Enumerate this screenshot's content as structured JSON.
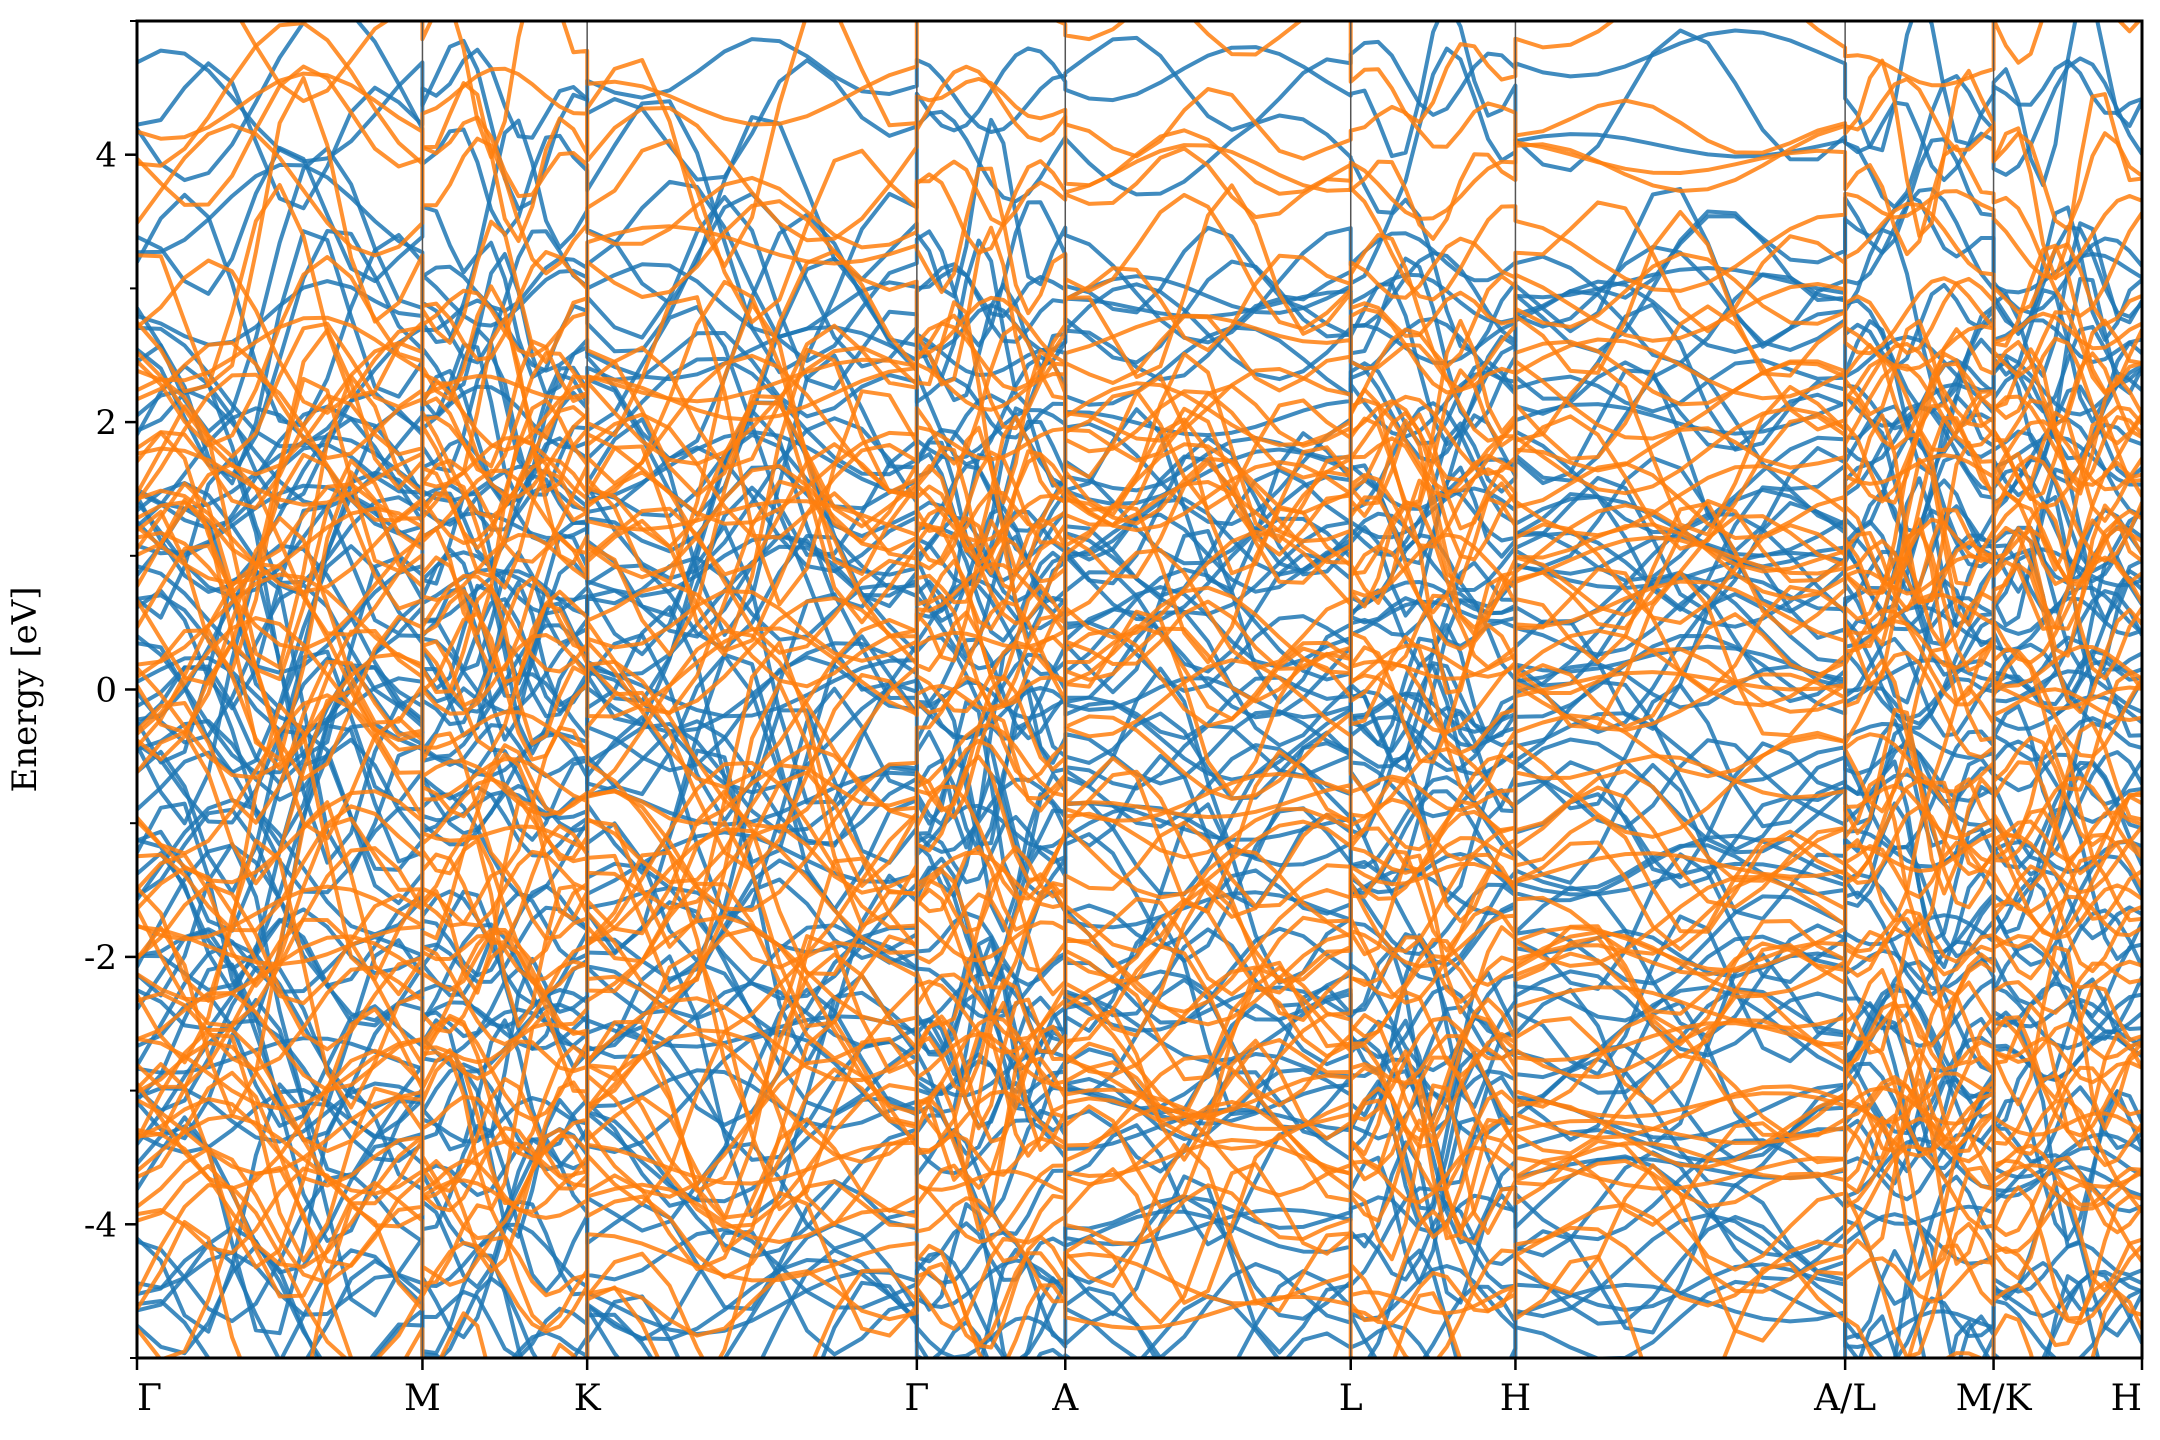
{
  "chart_data": {
    "type": "line",
    "title": "",
    "xlabel": "",
    "ylabel": "Energy [eV]",
    "ylim": [
      -5,
      5
    ],
    "yticks": [
      -4,
      -2,
      0,
      2,
      4
    ],
    "yminor_ticks": [
      -5,
      -3,
      -1,
      1,
      3,
      5
    ],
    "grid": false,
    "legend": "none",
    "colors": {
      "series_a": "#1f77b4",
      "series_b": "#ff7f0e",
      "kpoint_line": "#555555",
      "axes": "#000000"
    },
    "segments": [
      {
        "from": "Γ",
        "to": "M",
        "length": 1.0
      },
      {
        "from": "M",
        "to": "K",
        "length": 0.577
      },
      {
        "from": "K",
        "to": "Γ",
        "length": 1.155
      },
      {
        "from": "Γ",
        "to": "A",
        "length": 0.52
      },
      {
        "from": "A",
        "to": "L",
        "length": 1.0
      },
      {
        "from": "L",
        "to": "H",
        "length": 0.577
      },
      {
        "from": "H",
        "to": "A",
        "length": 1.155
      },
      {
        "from": "L",
        "to": "M",
        "length": 0.52
      },
      {
        "from": "K",
        "to": "H",
        "length": 0.52
      }
    ],
    "xtick_labels": [
      "Γ",
      "M",
      "K",
      "Γ",
      "A",
      "L",
      "H",
      "A/L",
      "M/K",
      "H"
    ],
    "bands_per_series": 70,
    "series": [
      {
        "color": "#1f77b4",
        "band_energies_at_kpoints": {
          "Γ": [
            -4.85,
            -4.6,
            -4.1,
            -3.7,
            -3.5,
            -3.2,
            -2.9,
            -2.6,
            -2.3,
            -2.1,
            -1.8,
            -1.55,
            -1.3,
            -1.0,
            -0.8,
            -0.55,
            -0.3,
            -0.05,
            0.15,
            0.4,
            0.6,
            0.85,
            1.05,
            1.25,
            1.5,
            1.75,
            2.0,
            2.3,
            2.6,
            3.0,
            3.7,
            4.25,
            4.7
          ],
          "A": [
            -4.85,
            -4.7,
            -4.4,
            -4.2,
            -3.8,
            -3.3,
            -3.1,
            -2.7,
            -2.4,
            -2.15,
            -1.8,
            -1.6,
            -1.2,
            -1.0,
            -0.7,
            -0.45,
            -0.15,
            0.15,
            0.35,
            0.55,
            0.75,
            1.0,
            1.1,
            1.35,
            1.6,
            1.9,
            2.15,
            2.45,
            2.65,
            2.75,
            3.1
          ],
          "L": [
            -4.7,
            -4.3,
            -4.0,
            -3.7,
            -3.3,
            -3.0,
            -2.6,
            -2.3,
            -2.1,
            -1.75,
            -1.4,
            -1.0,
            -0.7,
            -0.45,
            -0.15,
            0.1,
            0.35,
            0.6,
            0.8,
            1.05,
            1.3,
            1.55,
            1.8,
            2.25,
            2.5,
            2.9,
            3.3,
            3.9,
            4.4
          ]
        },
        "note_values_read_from_axes": true
      },
      {
        "color": "#ff7f0e",
        "band_energies_at_kpoints": {
          "Γ": [
            -4.85,
            -4.6,
            -4.3,
            -4.0,
            -3.65,
            -3.45,
            -3.1,
            -2.8,
            -2.55,
            -2.3,
            -2.0,
            -1.8,
            -1.5,
            -1.25,
            -0.9,
            -0.6,
            -0.2,
            0.1,
            0.3,
            0.5,
            0.7,
            1.0,
            1.2,
            1.45,
            1.7,
            1.95,
            2.15,
            2.55,
            3.65,
            4.1
          ],
          "A": [
            -4.6,
            -4.25,
            -3.7,
            -3.4,
            -3.15,
            -2.85,
            -2.6,
            -2.3,
            -2.0,
            -1.75,
            -1.45,
            -1.1,
            -0.8,
            -0.2,
            0.05,
            0.3,
            0.55,
            0.9,
            1.3,
            1.55,
            1.8,
            2.0,
            2.2,
            2.5,
            2.7,
            2.95,
            3.2
          ],
          "L": [
            -4.35,
            -4.1,
            -3.9,
            -3.45,
            -3.2,
            -2.8,
            -2.5,
            -2.2,
            -1.95,
            -1.65,
            -1.35,
            -1.0,
            -0.6,
            -0.05,
            0.3,
            0.55,
            0.85,
            1.2,
            1.45,
            1.8,
            2.05,
            2.45,
            2.95,
            3.75,
            4.1,
            4.75
          ]
        },
        "note_values_read_from_axes": true
      }
    ]
  }
}
